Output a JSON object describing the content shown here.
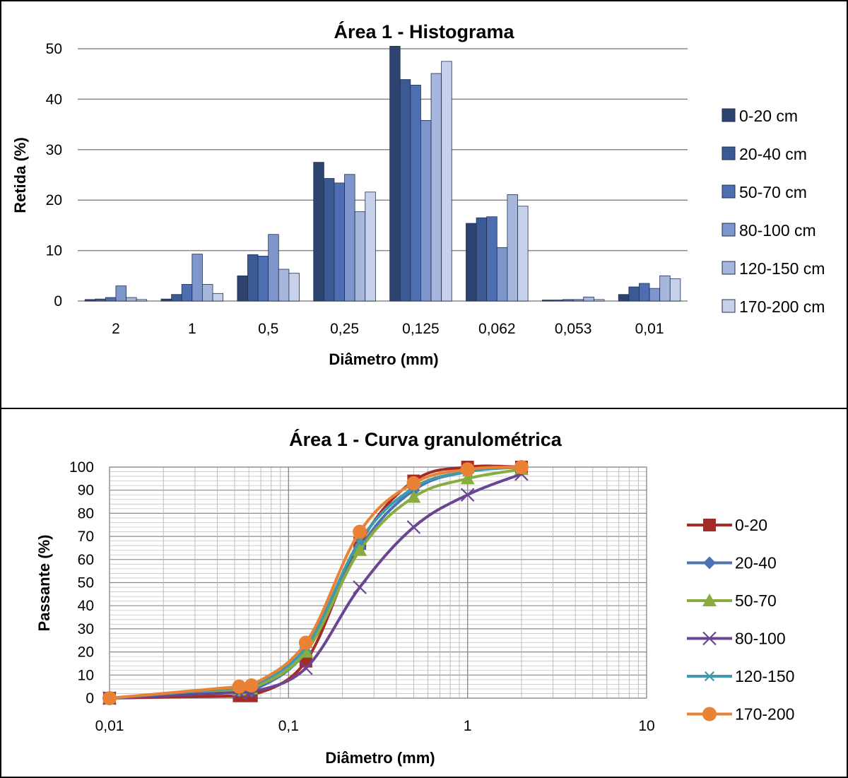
{
  "chart_data": [
    {
      "type": "bar",
      "title": "Área 1 - Histograma",
      "xlabel": "Diâmetro (mm)",
      "ylabel": "Retida (%)",
      "ylim": [
        0,
        50
      ],
      "yticks": [
        "0",
        "10",
        "20",
        "30",
        "40",
        "50"
      ],
      "categories": [
        "2",
        "1",
        "0,5",
        "0,25",
        "0,125",
        "0,062",
        "0,053",
        "0,01"
      ],
      "legend_position": "right",
      "series": [
        {
          "name": "0-20 cm",
          "color": "#2e4470",
          "values": [
            0.3,
            0.4,
            5.0,
            27.5,
            50.5,
            15.4,
            0.2,
            1.3
          ]
        },
        {
          "name": "20-40 cm",
          "color": "#3b5a94",
          "values": [
            0.4,
            1.3,
            9.2,
            24.3,
            43.9,
            16.5,
            0.2,
            2.8
          ]
        },
        {
          "name": "50-70 cm",
          "color": "#4d6eb0",
          "values": [
            0.7,
            3.3,
            8.9,
            23.4,
            42.8,
            16.7,
            0.3,
            3.5
          ]
        },
        {
          "name": "80-100 cm",
          "color": "#7f96cc",
          "values": [
            3.0,
            9.3,
            13.2,
            25.1,
            35.8,
            10.6,
            0.3,
            2.5
          ]
        },
        {
          "name": "120-150 cm",
          "color": "#a7b6dd",
          "values": [
            0.7,
            3.3,
            6.3,
            17.7,
            45.1,
            21.1,
            0.8,
            5.0
          ]
        },
        {
          "name": "170-200 cm",
          "color": "#c8d1ea",
          "values": [
            0.3,
            1.5,
            5.5,
            21.6,
            47.5,
            18.8,
            0.3,
            4.4
          ]
        }
      ]
    },
    {
      "type": "line",
      "title": "Área 1 - Curva granulométrica",
      "xlabel": "Diâmetro (mm)",
      "ylabel": "Passante (%)",
      "xscale": "log",
      "xlim": [
        0.01,
        10
      ],
      "ylim": [
        0,
        100
      ],
      "xticks": [
        {
          "value": 0.01,
          "label": "0,01"
        },
        {
          "value": 0.1,
          "label": "0,1"
        },
        {
          "value": 1,
          "label": "1"
        },
        {
          "value": 10,
          "label": "10"
        }
      ],
      "yticks": [
        "0",
        "10",
        "20",
        "30",
        "40",
        "50",
        "60",
        "70",
        "80",
        "90",
        "100"
      ],
      "grid": true,
      "legend_position": "right",
      "x": [
        0.01,
        0.053,
        0.062,
        0.125,
        0.25,
        0.5,
        1,
        2
      ],
      "series": [
        {
          "name": "0-20",
          "color": "#a52b27",
          "marker": "square",
          "values": [
            0,
            1,
            1,
            16,
            67,
            94,
            100,
            100
          ]
        },
        {
          "name": "20-40",
          "color": "#4a73b5",
          "marker": "diamond",
          "values": [
            0,
            3,
            3,
            20,
            65,
            90,
            98,
            100
          ]
        },
        {
          "name": "50-70",
          "color": "#88ad3e",
          "marker": "triangle",
          "values": [
            0,
            3.5,
            4,
            20,
            64,
            87,
            95,
            99
          ]
        },
        {
          "name": "80-100",
          "color": "#6a4591",
          "marker": "x",
          "values": [
            0,
            2.5,
            2.5,
            13,
            48,
            74,
            88,
            97
          ]
        },
        {
          "name": "120-150",
          "color": "#3f9aae",
          "marker": "star",
          "values": [
            0,
            4.5,
            5,
            22,
            68,
            91,
            98,
            100
          ]
        },
        {
          "name": "170-200",
          "color": "#e98234",
          "marker": "circle",
          "values": [
            0,
            5,
            5.5,
            24,
            72,
            93,
            99,
            100
          ]
        }
      ]
    }
  ]
}
